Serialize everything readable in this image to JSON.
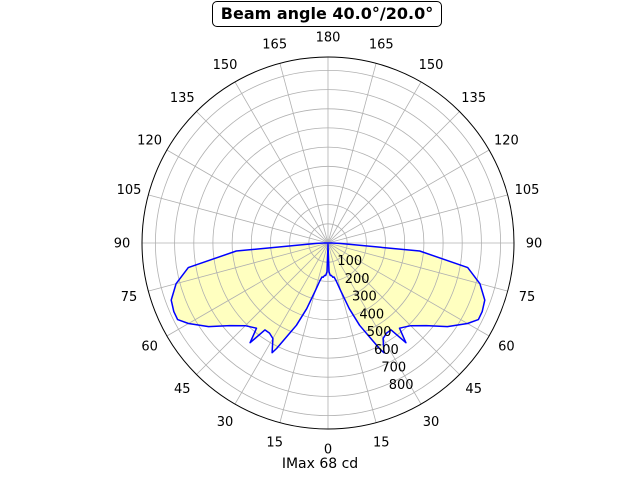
{
  "chart_data": {
    "type": "polar",
    "title": "Beam angle 40.0°/20.0°",
    "xlabel": "IMax 68 cd",
    "angle_ticks": [
      {
        "angle": 0,
        "label": "180"
      },
      {
        "angle": 15,
        "label": "165"
      },
      {
        "angle": 30,
        "label": "150"
      },
      {
        "angle": 45,
        "label": "135"
      },
      {
        "angle": 60,
        "label": "120"
      },
      {
        "angle": 75,
        "label": "105"
      },
      {
        "angle": 90,
        "label": "90"
      },
      {
        "angle": 105,
        "label": "75"
      },
      {
        "angle": 120,
        "label": "60"
      },
      {
        "angle": 135,
        "label": "45"
      },
      {
        "angle": 150,
        "label": "30"
      },
      {
        "angle": 165,
        "label": "15"
      },
      {
        "angle": 180,
        "label": "0"
      },
      {
        "angle": 195,
        "label": "15"
      },
      {
        "angle": 210,
        "label": "30"
      },
      {
        "angle": 225,
        "label": "45"
      },
      {
        "angle": 240,
        "label": "60"
      },
      {
        "angle": 255,
        "label": "75"
      },
      {
        "angle": 270,
        "label": "90"
      },
      {
        "angle": 285,
        "label": "105"
      },
      {
        "angle": 300,
        "label": "120"
      },
      {
        "angle": 315,
        "label": "135"
      },
      {
        "angle": 330,
        "label": "150"
      },
      {
        "angle": 345,
        "label": "165"
      }
    ],
    "radial_rings": [
      100,
      200,
      300,
      400,
      500,
      600,
      700,
      800,
      900
    ],
    "radial_labels": [
      "100",
      "200",
      "300",
      "400",
      "500",
      "600",
      "700",
      "800"
    ],
    "rmax": 970,
    "grid": true,
    "curve_color": "#0000ff",
    "fill_color": "#ffffc0",
    "series": [
      {
        "points": [
          [
            0,
            8
          ],
          [
            2,
            150
          ],
          [
            4,
            170
          ],
          [
            6,
            170
          ],
          [
            8,
            180
          ],
          [
            10,
            180
          ],
          [
            12,
            200
          ],
          [
            15,
            260
          ],
          [
            18,
            360
          ],
          [
            21,
            460
          ],
          [
            24,
            540
          ],
          [
            26,
            612
          ],
          [
            27,
            642
          ],
          [
            30,
            575
          ],
          [
            33,
            560
          ],
          [
            36,
            560
          ],
          [
            38,
            660
          ],
          [
            40,
            580
          ],
          [
            45,
            610
          ],
          [
            50,
            670
          ],
          [
            55,
            760
          ],
          [
            60,
            840
          ],
          [
            63,
            880
          ],
          [
            66,
            880
          ],
          [
            70,
            870
          ],
          [
            75,
            820
          ],
          [
            80,
            740
          ],
          [
            85,
            480
          ],
          [
            88,
            60
          ],
          [
            90,
            20
          ],
          [
            270,
            20
          ],
          [
            272,
            60
          ],
          [
            275,
            480
          ],
          [
            280,
            740
          ],
          [
            285,
            820
          ],
          [
            290,
            870
          ],
          [
            294,
            880
          ],
          [
            297,
            880
          ],
          [
            300,
            840
          ],
          [
            305,
            760
          ],
          [
            310,
            670
          ],
          [
            315,
            610
          ],
          [
            320,
            580
          ],
          [
            322,
            660
          ],
          [
            324,
            560
          ],
          [
            327,
            560
          ],
          [
            330,
            575
          ],
          [
            333,
            642
          ],
          [
            334,
            612
          ],
          [
            336,
            540
          ],
          [
            339,
            460
          ],
          [
            342,
            360
          ],
          [
            345,
            260
          ],
          [
            348,
            200
          ],
          [
            350,
            180
          ],
          [
            352,
            180
          ],
          [
            354,
            170
          ],
          [
            356,
            170
          ],
          [
            358,
            150
          ],
          [
            360,
            8
          ]
        ]
      }
    ]
  }
}
